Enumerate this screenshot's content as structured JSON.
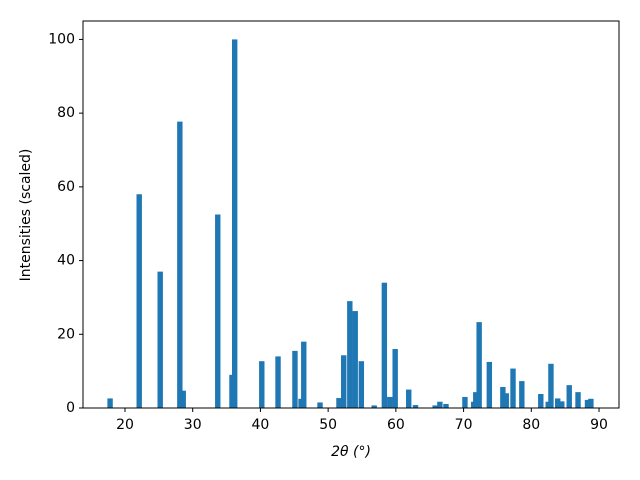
{
  "chart_data": {
    "type": "bar",
    "xlabel": "2θ (°)",
    "ylabel": "Intensities (scaled)",
    "color": "#1f77b4",
    "x": [
      17.8,
      22.1,
      25.2,
      28.1,
      28.6,
      33.7,
      35.8,
      36.2,
      40.2,
      42.6,
      45.1,
      46.0,
      46.4,
      48.8,
      51.6,
      52.3,
      53.2,
      54.0,
      54.9,
      56.8,
      58.3,
      59.1,
      59.9,
      61.9,
      62.9,
      65.8,
      66.5,
      67.4,
      70.2,
      71.5,
      71.8,
      72.3,
      73.8,
      75.8,
      76.3,
      77.3,
      78.6,
      81.4,
      82.5,
      82.9,
      83.9,
      84.5,
      85.6,
      86.9,
      88.3,
      88.8
    ],
    "values": [
      2.6,
      58,
      37,
      77.7,
      4.7,
      52.5,
      9,
      100,
      12.7,
      14,
      15.5,
      2.5,
      18,
      1.5,
      2.7,
      14.3,
      29,
      26.3,
      12.7,
      0.7,
      34,
      3,
      16,
      5,
      0.8,
      0.7,
      1.7,
      1.1,
      3,
      1.7,
      4.3,
      23.3,
      12.5,
      5.7,
      4,
      10.7,
      7.3,
      3.8,
      1.7,
      12,
      2.6,
      1.8,
      6.2,
      4.3,
      2.2,
      2.5
    ],
    "xlim": [
      13.8,
      92.95
    ],
    "ylim": [
      0,
      105
    ],
    "xticks": [
      20,
      30,
      40,
      50,
      60,
      70,
      80,
      90
    ],
    "yticks": [
      0,
      20,
      40,
      60,
      80,
      100
    ]
  }
}
